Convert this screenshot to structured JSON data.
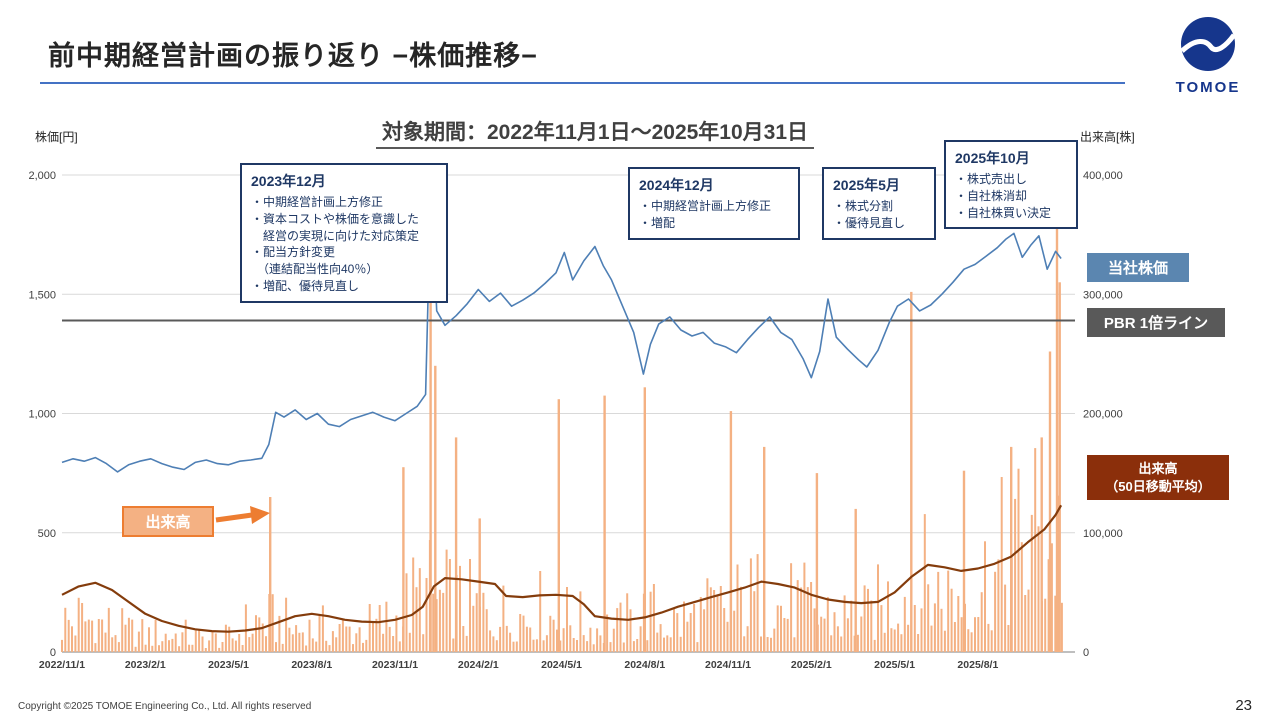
{
  "slide": {
    "title": "前中期経営計画の振り返り −株価推移−",
    "period_heading": "対象期間：2022年11月1日～2025年10月31日",
    "footer": "Copyright ©2025 TOMOE Engineering Co., Ltd. All rights reserved",
    "page_number": "23",
    "logo_text": "TOMOE"
  },
  "annotations": [
    {
      "title": "2023年12月",
      "text": "・中期経営計画上方修正\n・資本コストや株価を意識した\n　経営の実現に向けた対応策定\n・配当方針変更\n　（連結配当性向40％）\n・増配、優待見直し"
    },
    {
      "title": "2024年12月",
      "text": "・中期経営計画上方修正\n・増配"
    },
    {
      "title": "2025年5月",
      "text": "・株式分割\n・優待見直し"
    },
    {
      "title": "2025年10月",
      "text": "・株式売出し\n・自社株消却\n・自社株買い決定"
    }
  ],
  "legend": {
    "price": "当社株価",
    "pbr": "PBR 1倍ライン",
    "volume_ma": "出来高\n（50日移動平均）",
    "volume": "出来高"
  },
  "colors": {
    "accent_blue": "#4472c4",
    "navy": "#1f3864",
    "price_line": "#4e7fb5",
    "volume_bar": "#f4b183",
    "volume_ma_line": "#843c0c",
    "pbr_line": "#595959",
    "legend_price_bg": "#5b86b0",
    "legend_pbr_bg": "#595959",
    "legend_volume_ma_bg": "#8b2f0b",
    "volume_label_bg": "#f4b183",
    "volume_label_border": "#ed7d31",
    "logo_blue": "#16368c"
  },
  "chart_data": {
    "type": "composite",
    "title": "対象期間：2022年11月1日～2025年10月31日",
    "x_axis": {
      "start": "2022/11/1",
      "end": "2025/10/31",
      "tick_labels": [
        "2022/11/1",
        "2023/2/1",
        "2023/5/1",
        "2023/8/1",
        "2023/11/1",
        "2024/2/1",
        "2024/5/1",
        "2024/8/1",
        "2024/11/1",
        "2025/2/1",
        "2025/5/1",
        "2025/8/1"
      ],
      "tick_month_offsets": [
        0,
        3,
        6,
        9,
        12,
        15,
        18,
        21,
        24,
        27,
        30,
        33
      ],
      "total_months": 36.5
    },
    "y_left": {
      "label": "株価[円]",
      "ticks": [
        "2,000",
        "1,500",
        "1,000",
        "500",
        "0"
      ],
      "tick_values": [
        2000,
        1500,
        1000,
        500,
        0
      ],
      "max": 2000
    },
    "y_right": {
      "label": "出来高[株]",
      "ticks": [
        "400,000",
        "300,000",
        "200,000",
        "100,000",
        "0"
      ],
      "tick_values": [
        400000,
        300000,
        200000,
        100000,
        0
      ],
      "max": 400000
    },
    "grid": true,
    "pbr_line_value": 1390,
    "series": [
      {
        "name": "出来高",
        "type": "bar",
        "axis": "right",
        "color": "#f4b183",
        "monthly_base": [
          28000,
          32000,
          20000,
          15000,
          17000,
          12000,
          12000,
          30000,
          24000,
          21000,
          20000,
          22000,
          30000,
          55000,
          45000,
          38000,
          33000,
          38000,
          33000,
          24000,
          22000,
          34000,
          28000,
          33000,
          40000,
          48000,
          43000,
          38000,
          33000,
          30000,
          52000,
          62000,
          52000,
          62000,
          78000,
          105000
        ],
        "spikes": [
          [
            7.5,
            130000
          ],
          [
            12.3,
            155000
          ],
          [
            13.28,
            400000
          ],
          [
            13.45,
            240000
          ],
          [
            14.2,
            180000
          ],
          [
            15.05,
            112000
          ],
          [
            17.9,
            212000
          ],
          [
            19.55,
            215000
          ],
          [
            21.0,
            222000
          ],
          [
            24.1,
            202000
          ],
          [
            25.3,
            172000
          ],
          [
            27.2,
            150000
          ],
          [
            28.6,
            120000
          ],
          [
            30.6,
            302000
          ],
          [
            32.5,
            152000
          ],
          [
            34.2,
            172000
          ],
          [
            35.3,
            180000
          ],
          [
            35.6,
            252000
          ],
          [
            35.85,
            385000
          ],
          [
            35.95,
            310000
          ]
        ]
      },
      {
        "name": "出来高（50日移動平均）",
        "type": "line",
        "axis": "right",
        "color": "#843c0c",
        "points": [
          [
            0,
            48000
          ],
          [
            0.6,
            55000
          ],
          [
            1.2,
            58000
          ],
          [
            1.8,
            52000
          ],
          [
            2.4,
            42000
          ],
          [
            3,
            32000
          ],
          [
            3.6,
            26000
          ],
          [
            4.2,
            22000
          ],
          [
            4.8,
            19000
          ],
          [
            5.4,
            17500
          ],
          [
            6,
            17000
          ],
          [
            6.6,
            18000
          ],
          [
            7.2,
            20000
          ],
          [
            7.8,
            25000
          ],
          [
            8.4,
            30000
          ],
          [
            9,
            32000
          ],
          [
            9.6,
            30000
          ],
          [
            10.2,
            27000
          ],
          [
            10.8,
            25500
          ],
          [
            11.4,
            25000
          ],
          [
            12,
            27000
          ],
          [
            12.6,
            31000
          ],
          [
            13,
            38000
          ],
          [
            13.4,
            55000
          ],
          [
            13.8,
            62000
          ],
          [
            14.4,
            61000
          ],
          [
            15,
            59000
          ],
          [
            15.6,
            57000
          ],
          [
            16,
            47000
          ],
          [
            16.6,
            46000
          ],
          [
            17.2,
            47500
          ],
          [
            17.8,
            48000
          ],
          [
            18.4,
            47000
          ],
          [
            18.8,
            40000
          ],
          [
            19.2,
            30000
          ],
          [
            19.8,
            28000
          ],
          [
            20.4,
            27000
          ],
          [
            21,
            29000
          ],
          [
            21.6,
            33000
          ],
          [
            22.2,
            38000
          ],
          [
            22.8,
            42000
          ],
          [
            23.4,
            46000
          ],
          [
            24,
            50000
          ],
          [
            24.6,
            54000
          ],
          [
            25.2,
            59000
          ],
          [
            25.8,
            57000
          ],
          [
            26.4,
            54000
          ],
          [
            27,
            48000
          ],
          [
            27.6,
            44000
          ],
          [
            28.2,
            42000
          ],
          [
            28.8,
            41000
          ],
          [
            29.4,
            42000
          ],
          [
            30,
            50000
          ],
          [
            30.6,
            63000
          ],
          [
            31.2,
            73000
          ],
          [
            31.8,
            71000
          ],
          [
            32.4,
            68000
          ],
          [
            33,
            70000
          ],
          [
            33.6,
            74000
          ],
          [
            34.2,
            80000
          ],
          [
            34.8,
            92000
          ],
          [
            35.4,
            103000
          ],
          [
            35.8,
            115000
          ],
          [
            36,
            123000
          ]
        ]
      },
      {
        "name": "当社株価",
        "type": "line",
        "axis": "left",
        "color": "#4e7fb5",
        "points": [
          [
            0,
            795
          ],
          [
            0.4,
            810
          ],
          [
            0.8,
            800
          ],
          [
            1.2,
            815
          ],
          [
            1.6,
            790
          ],
          [
            2,
            755
          ],
          [
            2.4,
            785
          ],
          [
            2.8,
            800
          ],
          [
            3.2,
            810
          ],
          [
            3.6,
            790
          ],
          [
            4,
            775
          ],
          [
            4.4,
            765
          ],
          [
            4.8,
            795
          ],
          [
            5.2,
            805
          ],
          [
            5.6,
            790
          ],
          [
            6,
            785
          ],
          [
            6.4,
            800
          ],
          [
            6.8,
            805
          ],
          [
            7.2,
            812
          ],
          [
            7.45,
            870
          ],
          [
            7.7,
            1005
          ],
          [
            8,
            985
          ],
          [
            8.4,
            1015
          ],
          [
            8.8,
            975
          ],
          [
            9.2,
            1000
          ],
          [
            9.6,
            955
          ],
          [
            10,
            945
          ],
          [
            10.4,
            975
          ],
          [
            10.8,
            990
          ],
          [
            11.2,
            1005
          ],
          [
            11.6,
            985
          ],
          [
            12,
            970
          ],
          [
            12.4,
            1000
          ],
          [
            12.8,
            1030
          ],
          [
            13.1,
            1080
          ],
          [
            13.3,
            1990
          ],
          [
            13.5,
            1430
          ],
          [
            13.8,
            1370
          ],
          [
            14.2,
            1410
          ],
          [
            14.6,
            1460
          ],
          [
            15,
            1520
          ],
          [
            15.4,
            1470
          ],
          [
            15.8,
            1505
          ],
          [
            16.2,
            1450
          ],
          [
            16.6,
            1475
          ],
          [
            17,
            1505
          ],
          [
            17.4,
            1545
          ],
          [
            17.8,
            1590
          ],
          [
            18.1,
            1675
          ],
          [
            18.4,
            1560
          ],
          [
            18.8,
            1640
          ],
          [
            19.2,
            1700
          ],
          [
            19.5,
            1620
          ],
          [
            19.8,
            1560
          ],
          [
            20.2,
            1450
          ],
          [
            20.6,
            1340
          ],
          [
            20.95,
            1165
          ],
          [
            21.2,
            1290
          ],
          [
            21.5,
            1375
          ],
          [
            21.9,
            1405
          ],
          [
            22.3,
            1350
          ],
          [
            22.7,
            1325
          ],
          [
            23.1,
            1340
          ],
          [
            23.5,
            1295
          ],
          [
            23.9,
            1280
          ],
          [
            24.3,
            1255
          ],
          [
            24.7,
            1310
          ],
          [
            25.1,
            1360
          ],
          [
            25.5,
            1405
          ],
          [
            25.9,
            1340
          ],
          [
            26.3,
            1310
          ],
          [
            26.7,
            1230
          ],
          [
            27,
            1150
          ],
          [
            27.3,
            1260
          ],
          [
            27.6,
            1480
          ],
          [
            27.9,
            1320
          ],
          [
            28.3,
            1270
          ],
          [
            28.7,
            1225
          ],
          [
            29,
            1195
          ],
          [
            29.4,
            1265
          ],
          [
            29.8,
            1380
          ],
          [
            30.1,
            1450
          ],
          [
            30.5,
            1480
          ],
          [
            30.9,
            1430
          ],
          [
            31.3,
            1455
          ],
          [
            31.7,
            1500
          ],
          [
            32.1,
            1550
          ],
          [
            32.5,
            1605
          ],
          [
            32.9,
            1625
          ],
          [
            33.3,
            1660
          ],
          [
            33.7,
            1695
          ],
          [
            34,
            1730
          ],
          [
            34.3,
            1755
          ],
          [
            34.6,
            1655
          ],
          [
            34.9,
            1705
          ],
          [
            35.2,
            1745
          ],
          [
            35.5,
            1605
          ],
          [
            35.8,
            1680
          ],
          [
            36,
            1650
          ]
        ]
      }
    ]
  }
}
